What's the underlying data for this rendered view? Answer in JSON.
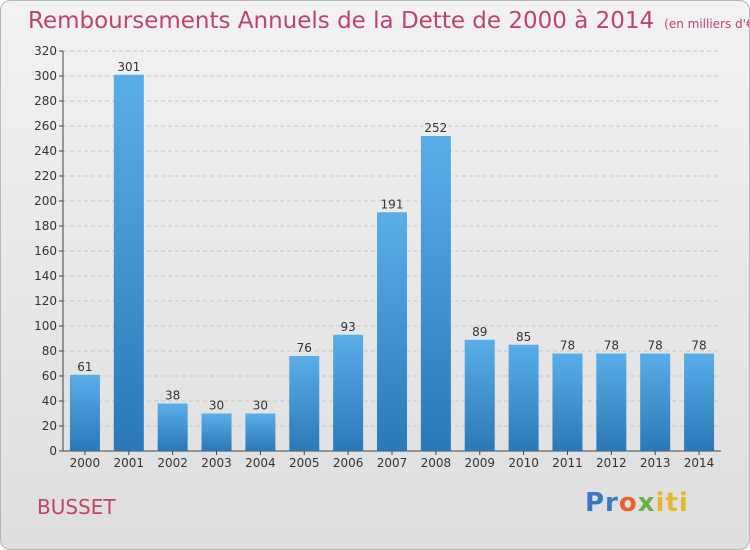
{
  "header": {
    "title": "Remboursements Annuels de la Dette de 2000 à 2014",
    "unit": "(en milliers d'€)"
  },
  "footer": {
    "commune": "BUSSET",
    "logo_parts": [
      "Pr",
      "o",
      "x",
      "iti"
    ]
  },
  "colors": {
    "bar_top": "#5aaee8",
    "bar_bottom": "#2a78b8",
    "title": "#c04466",
    "grid": "#c8c8c8"
  },
  "chart_data": {
    "type": "bar",
    "title": "Remboursements Annuels de la Dette de 2000 à 2014",
    "subtitle": "(en milliers d'€)",
    "categories": [
      "2000",
      "2001",
      "2002",
      "2003",
      "2004",
      "2005",
      "2006",
      "2007",
      "2008",
      "2009",
      "2010",
      "2011",
      "2012",
      "2013",
      "2014"
    ],
    "values": [
      61,
      301,
      38,
      30,
      30,
      76,
      93,
      191,
      252,
      89,
      85,
      78,
      78,
      78,
      78
    ],
    "ylim": [
      0,
      320
    ],
    "yticks": [
      0,
      20,
      40,
      60,
      80,
      100,
      120,
      140,
      160,
      180,
      200,
      220,
      240,
      260,
      280,
      300,
      320
    ],
    "grid": true,
    "xlabel": "",
    "ylabel": ""
  }
}
